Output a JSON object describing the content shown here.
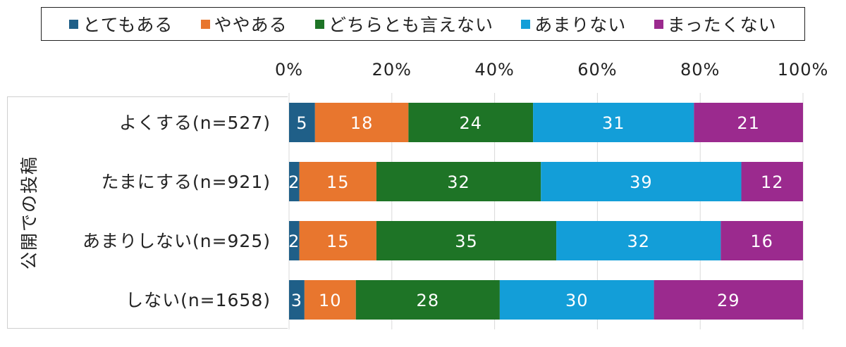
{
  "chart_data": {
    "type": "bar",
    "orientation": "horizontal",
    "stacked": "percent",
    "group_label": "公開での投稿",
    "categories": [
      "よくする(n=527)",
      "たまにする(n=921)",
      "あまりしない(n=925)",
      "しない(n=1658)"
    ],
    "series": [
      {
        "name": "とてもある",
        "color": "#1f5f88",
        "values": [
          5,
          2,
          2,
          3
        ]
      },
      {
        "name": "ややある",
        "color": "#e8762e",
        "values": [
          18,
          15,
          15,
          10
        ]
      },
      {
        "name": "どちらとも言えない",
        "color": "#1e7426",
        "values": [
          24,
          32,
          35,
          28
        ]
      },
      {
        "name": "あまりない",
        "color": "#139ed8",
        "values": [
          31,
          39,
          32,
          30
        ]
      },
      {
        "name": "まったくない",
        "color": "#9b2a8e",
        "values": [
          21,
          12,
          16,
          29
        ]
      }
    ],
    "xticks": [
      "0%",
      "20%",
      "40%",
      "60%",
      "80%",
      "100%"
    ],
    "xlim": [
      0,
      100
    ],
    "grid": true,
    "legend_position": "top"
  }
}
